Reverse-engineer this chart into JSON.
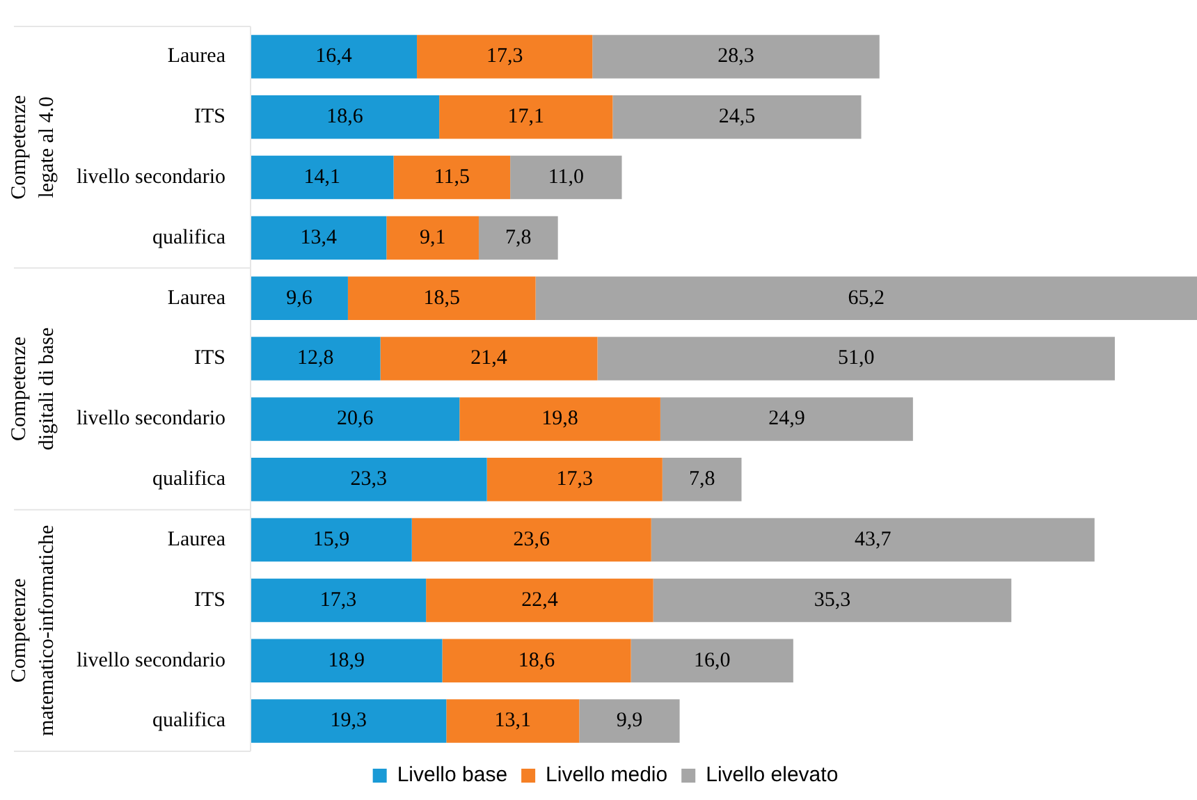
{
  "chart_data": {
    "type": "bar",
    "orientation": "horizontal",
    "stacked": true,
    "tick_labels": "y",
    "legend": "bottom",
    "categories": [
      "Laurea",
      "ITS",
      "livello secondario",
      "qualifica",
      "Laurea",
      "ITS",
      "livello secondario",
      "qualifica",
      "Laurea",
      "ITS",
      "livello secondario",
      "qualifica"
    ],
    "annotations": [
      "Competenze legate al 4.0",
      "Competenze digitali di base",
      "Competenze matematico-informatiche"
    ],
    "series": [
      {
        "name": "Livello base",
        "color": "#1a9ad6",
        "values": [
          16.4,
          18.6,
          14.1,
          13.4,
          9.6,
          12.8,
          20.6,
          23.3,
          15.9,
          17.3,
          18.9,
          19.3
        ],
        "value_labels": [
          "16,4",
          "18,6",
          "14,1",
          "13,4",
          "9,6",
          "12,8",
          "20,6",
          "23,3",
          "15,9",
          "17,3",
          "18,9",
          "19,3"
        ]
      },
      {
        "name": "Livello medio",
        "color": "#f58025",
        "values": [
          17.3,
          17.1,
          11.5,
          9.1,
          18.5,
          21.4,
          19.8,
          17.3,
          23.6,
          22.4,
          18.6,
          13.1
        ],
        "value_labels": [
          "17,3",
          "17,1",
          "11,5",
          "9,1",
          "18,5",
          "21,4",
          "19,8",
          "17,3",
          "23,6",
          "22,4",
          "18,6",
          "13,1"
        ]
      },
      {
        "name": "Livello elevato",
        "color": "#a6a6a6",
        "values": [
          28.3,
          24.5,
          11.0,
          7.8,
          65.2,
          51.0,
          24.9,
          7.8,
          43.7,
          35.3,
          16.0,
          9.9
        ],
        "value_labels": [
          "28,3",
          "24,5",
          "11,0",
          "7,8",
          "65,2",
          "51,0",
          "24,9",
          "7,8",
          "43,7",
          "35,3",
          "16,0",
          "9,9"
        ]
      }
    ]
  }
}
